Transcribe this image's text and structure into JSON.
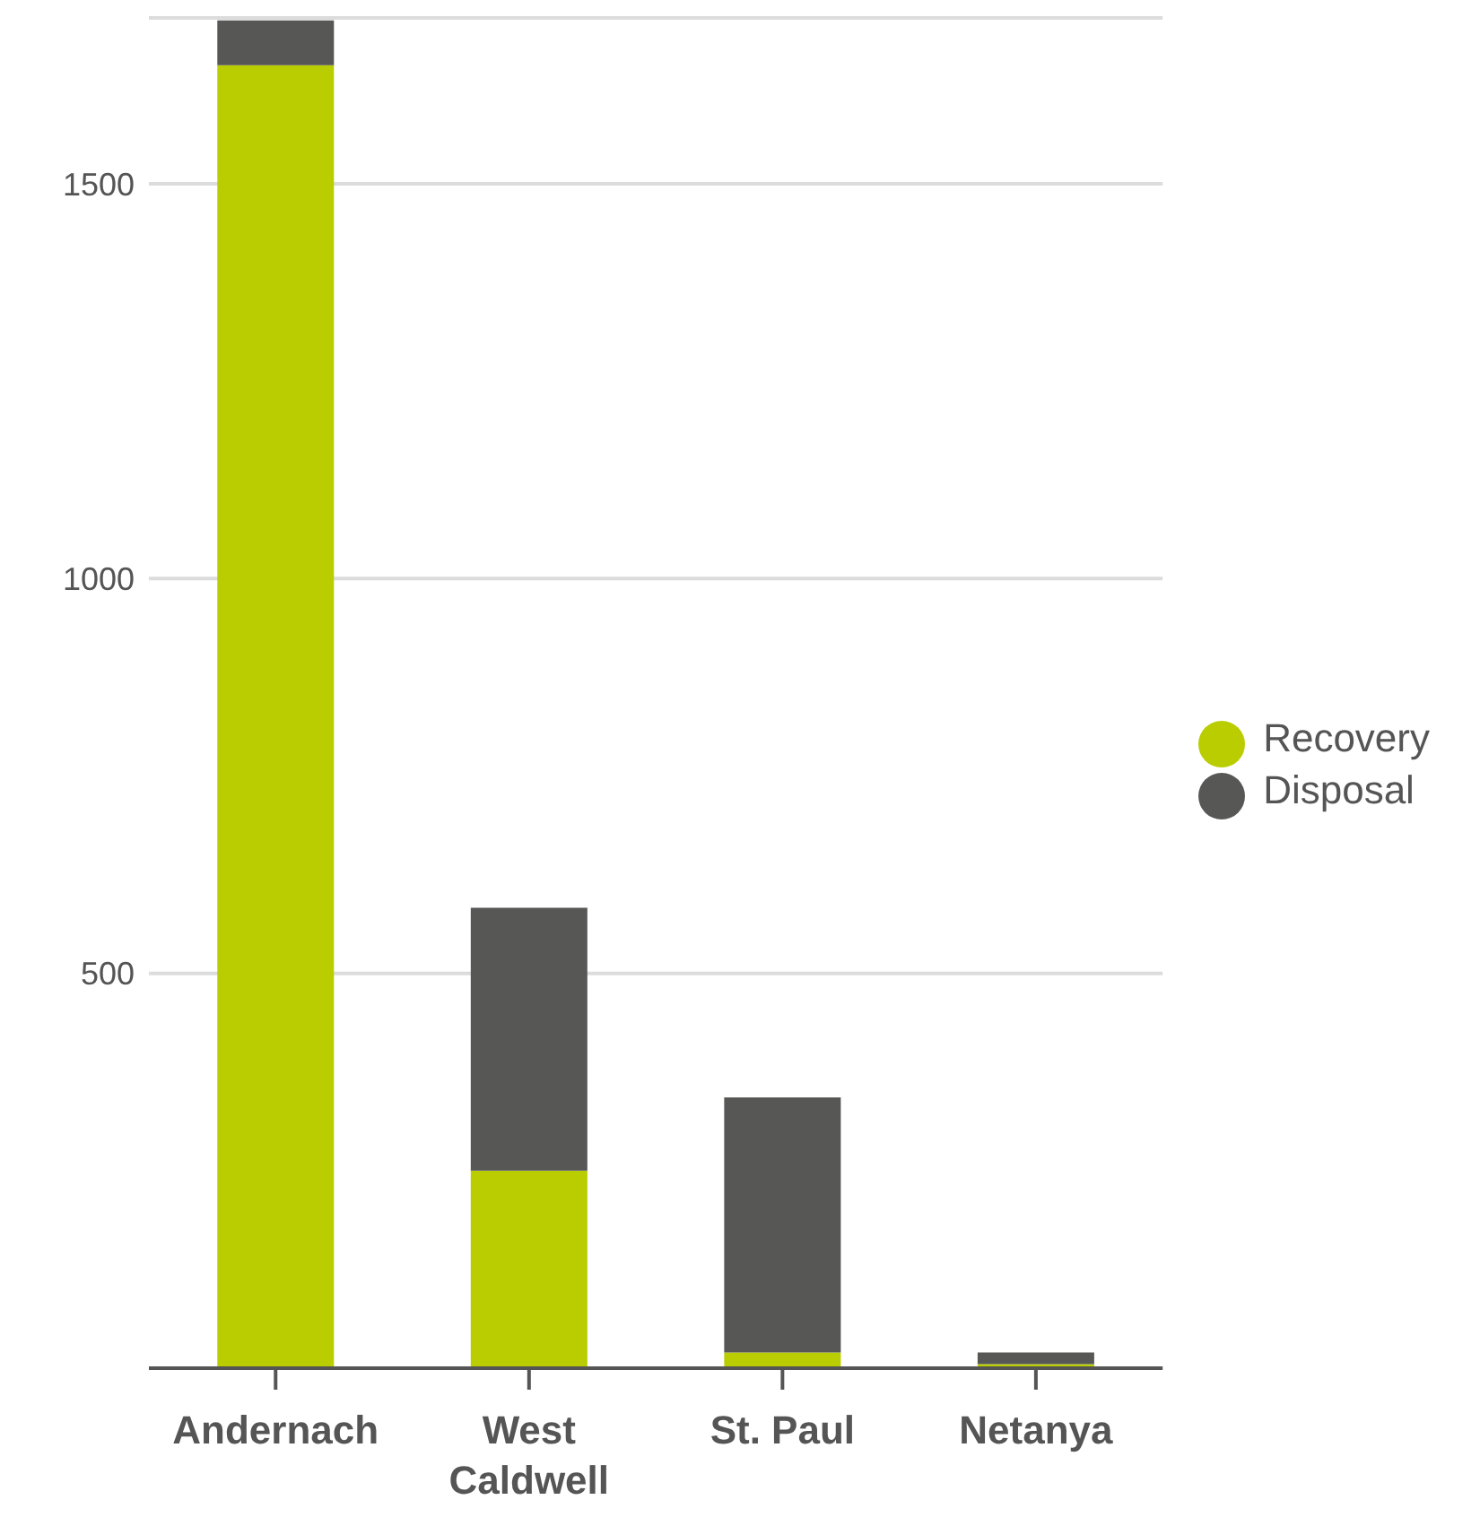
{
  "chart_data": {
    "type": "bar",
    "stacked": true,
    "categories": [
      "Andernach",
      "West Caldwell",
      "St. Paul",
      "Netanya"
    ],
    "series": [
      {
        "name": "Recovery",
        "color": "#b9cd00",
        "values": [
          1650,
          250,
          20,
          5
        ]
      },
      {
        "name": "Disposal",
        "color": "#575755",
        "values": [
          57,
          333,
          323,
          15
        ]
      }
    ],
    "ylim": [
      0,
      1710
    ],
    "yticks": [
      500,
      1000,
      1500
    ],
    "grid": "y",
    "legend": "right"
  }
}
